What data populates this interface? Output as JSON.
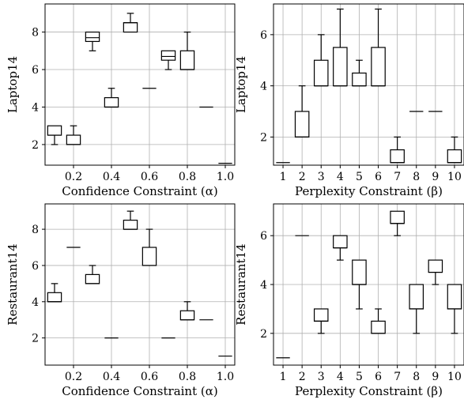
{
  "chart_data": [
    {
      "type": "box",
      "panel": "top-left",
      "xlabel": "Confidence Constraint (α)",
      "ylabel": "Laptop14",
      "xticks": [
        "0.2",
        "0.4",
        "0.6",
        "0.8",
        "1.0"
      ],
      "yticks": [
        2,
        4,
        6,
        8
      ],
      "xlim": [
        0.05,
        1.05
      ],
      "ylim": [
        0.9,
        9.5
      ],
      "grid": true,
      "x": [
        0.1,
        0.2,
        0.3,
        0.4,
        0.5,
        0.6,
        0.7,
        0.8,
        0.9,
        1.0
      ],
      "boxes": [
        {
          "min": 2.0,
          "q1": 2.5,
          "median": 2.5,
          "q3": 3.0,
          "max": 3.0
        },
        {
          "min": 2.0,
          "q1": 2.0,
          "median": 2.0,
          "q3": 2.5,
          "max": 3.0
        },
        {
          "min": 7.0,
          "q1": 7.5,
          "median": 7.7,
          "q3": 8.0,
          "max": 8.0
        },
        {
          "min": 4.0,
          "q1": 4.0,
          "median": 4.0,
          "q3": 4.5,
          "max": 5.0
        },
        {
          "min": 8.0,
          "q1": 8.0,
          "median": 8.5,
          "q3": 8.5,
          "max": 9.0
        },
        {
          "min": 5.0,
          "q1": 5.0,
          "median": 5.0,
          "q3": 5.0,
          "max": 5.0
        },
        {
          "min": 6.0,
          "q1": 6.5,
          "median": 6.7,
          "q3": 7.0,
          "max": 7.0
        },
        {
          "min": 6.0,
          "q1": 6.0,
          "median": 6.0,
          "q3": 7.0,
          "max": 8.0
        },
        {
          "min": 4.0,
          "q1": 4.0,
          "median": 4.0,
          "q3": 4.0,
          "max": 4.0
        },
        {
          "min": 1.0,
          "q1": 1.0,
          "median": 1.0,
          "q3": 1.0,
          "max": 1.0
        }
      ]
    },
    {
      "type": "box",
      "panel": "top-right",
      "xlabel": "Perplexity Constraint (β)",
      "ylabel": "Laptop14",
      "xticks": [
        "1",
        "2",
        "3",
        "4",
        "5",
        "6",
        "7",
        "8",
        "9",
        "10"
      ],
      "yticks": [
        2,
        4,
        6
      ],
      "xlim": [
        0.5,
        10.5
      ],
      "ylim": [
        0.9,
        7.2
      ],
      "grid": true,
      "x": [
        1,
        2,
        3,
        4,
        5,
        6,
        7,
        8,
        9,
        10
      ],
      "boxes": [
        {
          "min": 1.0,
          "q1": 1.0,
          "median": 1.0,
          "q3": 1.0,
          "max": 1.0
        },
        {
          "min": 2.0,
          "q1": 2.0,
          "median": 2.0,
          "q3": 3.0,
          "max": 4.0
        },
        {
          "min": 4.0,
          "q1": 4.0,
          "median": 4.0,
          "q3": 5.0,
          "max": 6.0
        },
        {
          "min": 4.0,
          "q1": 4.0,
          "median": 4.0,
          "q3": 5.5,
          "max": 7.0
        },
        {
          "min": 4.0,
          "q1": 4.0,
          "median": 4.0,
          "q3": 4.5,
          "max": 5.0
        },
        {
          "min": 4.0,
          "q1": 4.0,
          "median": 4.0,
          "q3": 5.5,
          "max": 7.0
        },
        {
          "min": 1.0,
          "q1": 1.0,
          "median": 1.0,
          "q3": 1.5,
          "max": 2.0
        },
        {
          "min": 3.0,
          "q1": 3.0,
          "median": 3.0,
          "q3": 3.0,
          "max": 3.0
        },
        {
          "min": 3.0,
          "q1": 3.0,
          "median": 3.0,
          "q3": 3.0,
          "max": 3.0
        },
        {
          "min": 1.0,
          "q1": 1.0,
          "median": 1.0,
          "q3": 1.5,
          "max": 2.0
        }
      ]
    },
    {
      "type": "box",
      "panel": "bottom-left",
      "xlabel": "Confidence Constraint (α)",
      "ylabel": "Restaurant14",
      "xticks": [
        "0.2",
        "0.4",
        "0.6",
        "0.8",
        "1.0"
      ],
      "yticks": [
        2,
        4,
        6,
        8
      ],
      "xlim": [
        0.05,
        1.05
      ],
      "ylim": [
        0.5,
        9.4
      ],
      "grid": true,
      "x": [
        0.1,
        0.2,
        0.3,
        0.4,
        0.5,
        0.6,
        0.7,
        0.8,
        0.9,
        1.0
      ],
      "boxes": [
        {
          "min": 4.0,
          "q1": 4.0,
          "median": 4.0,
          "q3": 4.5,
          "max": 5.0
        },
        {
          "min": 7.0,
          "q1": 7.0,
          "median": 7.0,
          "q3": 7.0,
          "max": 7.0
        },
        {
          "min": 5.0,
          "q1": 5.0,
          "median": 5.0,
          "q3": 5.5,
          "max": 6.0
        },
        {
          "min": 2.0,
          "q1": 2.0,
          "median": 2.0,
          "q3": 2.0,
          "max": 2.0
        },
        {
          "min": 8.0,
          "q1": 8.0,
          "median": 8.0,
          "q3": 8.5,
          "max": 9.0
        },
        {
          "min": 6.0,
          "q1": 6.0,
          "median": 6.0,
          "q3": 7.0,
          "max": 8.0
        },
        {
          "min": 2.0,
          "q1": 2.0,
          "median": 2.0,
          "q3": 2.0,
          "max": 2.0
        },
        {
          "min": 3.0,
          "q1": 3.0,
          "median": 3.0,
          "q3": 3.5,
          "max": 4.0
        },
        {
          "min": 3.0,
          "q1": 3.0,
          "median": 3.0,
          "q3": 3.0,
          "max": 3.0
        },
        {
          "min": 1.0,
          "q1": 1.0,
          "median": 1.0,
          "q3": 1.0,
          "max": 1.0
        }
      ]
    },
    {
      "type": "box",
      "panel": "bottom-right",
      "xlabel": "Perplexity Constraint (β)",
      "ylabel": "Restaurant14",
      "xticks": [
        "1",
        "2",
        "3",
        "4",
        "5",
        "6",
        "7",
        "8",
        "9",
        "10"
      ],
      "yticks": [
        2,
        4,
        6
      ],
      "xlim": [
        0.5,
        10.5
      ],
      "ylim": [
        0.7,
        7.3
      ],
      "grid": true,
      "x": [
        1,
        2,
        3,
        4,
        5,
        6,
        7,
        8,
        9,
        10
      ],
      "boxes": [
        {
          "min": 1.0,
          "q1": 1.0,
          "median": 1.0,
          "q3": 1.0,
          "max": 1.0
        },
        {
          "min": 6.0,
          "q1": 6.0,
          "median": 6.0,
          "q3": 6.0,
          "max": 6.0
        },
        {
          "min": 2.0,
          "q1": 2.5,
          "median": 2.5,
          "q3": 3.0,
          "max": 3.0
        },
        {
          "min": 5.0,
          "q1": 5.5,
          "median": 5.5,
          "q3": 6.0,
          "max": 6.0
        },
        {
          "min": 3.0,
          "q1": 4.0,
          "median": 4.0,
          "q3": 5.0,
          "max": 5.0
        },
        {
          "min": 2.0,
          "q1": 2.0,
          "median": 2.0,
          "q3": 2.5,
          "max": 3.0
        },
        {
          "min": 6.0,
          "q1": 6.5,
          "median": 6.5,
          "q3": 7.0,
          "max": 7.0
        },
        {
          "min": 2.0,
          "q1": 3.0,
          "median": 3.0,
          "q3": 4.0,
          "max": 4.0
        },
        {
          "min": 4.0,
          "q1": 4.5,
          "median": 4.5,
          "q3": 5.0,
          "max": 5.0
        },
        {
          "min": 2.0,
          "q1": 3.0,
          "median": 3.0,
          "q3": 4.0,
          "max": 4.0
        }
      ]
    }
  ]
}
